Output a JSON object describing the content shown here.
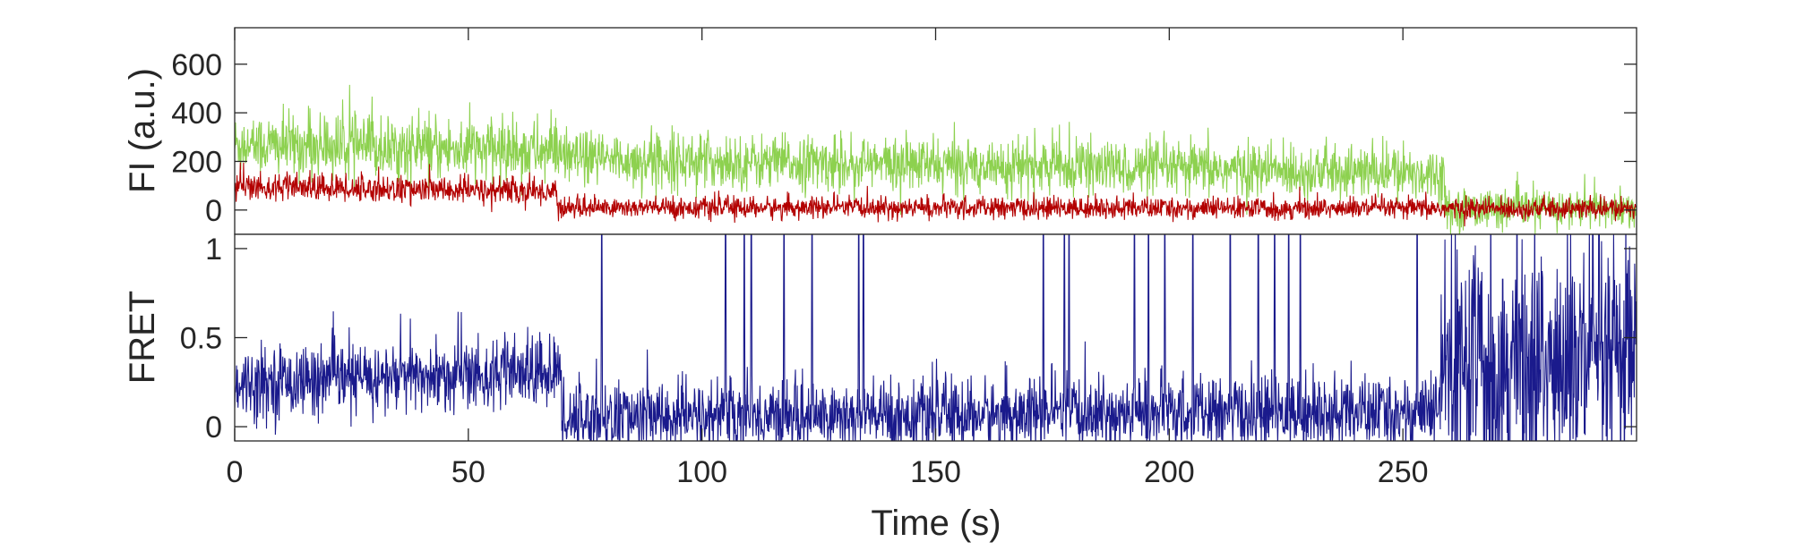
{
  "chart_data": [
    {
      "type": "line",
      "panel": "top",
      "ylabel": "FI (a.u.)",
      "xlim": [
        0,
        300
      ],
      "ylim": [
        -100,
        750
      ],
      "yticks": [
        0,
        200,
        400,
        600
      ],
      "ytick_labels": [
        "0",
        "200",
        "400",
        "600"
      ],
      "grid": false,
      "series": [
        {
          "color": "#8dd14f",
          "segments": [
            {
              "t0": 0,
              "t1": 70,
              "mean0": 270,
              "mean1": 240,
              "noise": 65
            },
            {
              "t0": 70,
              "t1": 259,
              "mean0": 210,
              "mean1": 150,
              "noise": 55
            },
            {
              "t0": 259,
              "t1": 300,
              "mean0": 5,
              "mean1": 5,
              "noise": 40
            }
          ]
        },
        {
          "color": "#b30000",
          "segments": [
            {
              "t0": 0,
              "t1": 69,
              "mean0": 95,
              "mean1": 75,
              "noise": 28
            },
            {
              "t0": 69,
              "t1": 300,
              "mean0": 10,
              "mean1": 5,
              "noise": 22
            }
          ]
        }
      ]
    },
    {
      "type": "line",
      "panel": "bottom",
      "ylabel": "FRET",
      "xlabel": "Time (s)",
      "xlim": [
        0,
        300
      ],
      "ylim": [
        -0.08,
        1.08
      ],
      "xticks": [
        0,
        50,
        100,
        150,
        200,
        250
      ],
      "xtick_labels": [
        "0",
        "50",
        "100",
        "150",
        "200",
        "250"
      ],
      "yticks": [
        0,
        0.5,
        1
      ],
      "ytick_labels": [
        "0",
        "0.5",
        "1"
      ],
      "grid": false,
      "series": [
        {
          "color": "#1a1a8c",
          "segments": [
            {
              "t0": 0,
              "t1": 70,
              "mean0": 0.25,
              "mean1": 0.3,
              "noise": 0.1
            },
            {
              "t0": 70,
              "t1": 258,
              "mean0": 0.05,
              "mean1": 0.08,
              "noise": 0.1
            },
            {
              "t0": 258,
              "t1": 300,
              "mean0": 0.35,
              "mean1": 0.35,
              "noise": 0.35
            }
          ],
          "spikes_to_one": [
            78.5,
            105,
            109,
            110.5,
            117.5,
            123.5,
            133.5,
            134.5,
            173,
            177.5,
            178.5,
            192.5,
            195.5,
            199,
            205,
            213,
            219,
            222.5,
            225.5,
            228,
            253
          ]
        }
      ]
    }
  ]
}
